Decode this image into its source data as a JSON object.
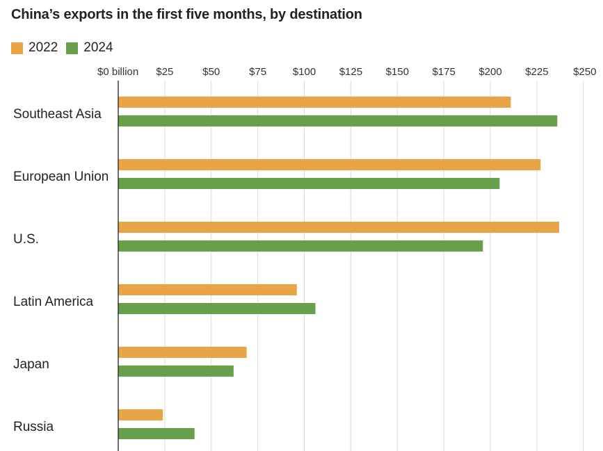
{
  "chart_data": {
    "type": "bar",
    "orientation": "horizontal",
    "title": "China’s exports in the first five months, by destination",
    "categories": [
      "Southeast Asia",
      "European Union",
      "U.S.",
      "Latin America",
      "Japan",
      "Russia"
    ],
    "series": [
      {
        "name": "2022",
        "color": "#E9A445",
        "values": [
          211,
          227,
          237,
          96,
          69,
          24
        ]
      },
      {
        "name": "2024",
        "color": "#67A04A",
        "values": [
          236,
          205,
          196,
          106,
          62,
          41
        ]
      }
    ],
    "xlim": [
      0,
      250
    ],
    "ticks": [
      0,
      25,
      50,
      75,
      100,
      125,
      150,
      175,
      200,
      225,
      250
    ],
    "tick_labels": [
      "$0 billion",
      "$25",
      "$50",
      "$75",
      "$100",
      "$125",
      "$150",
      "$175",
      "$200",
      "$225",
      "$250"
    ],
    "grid": true,
    "legend_position": "top-left"
  }
}
